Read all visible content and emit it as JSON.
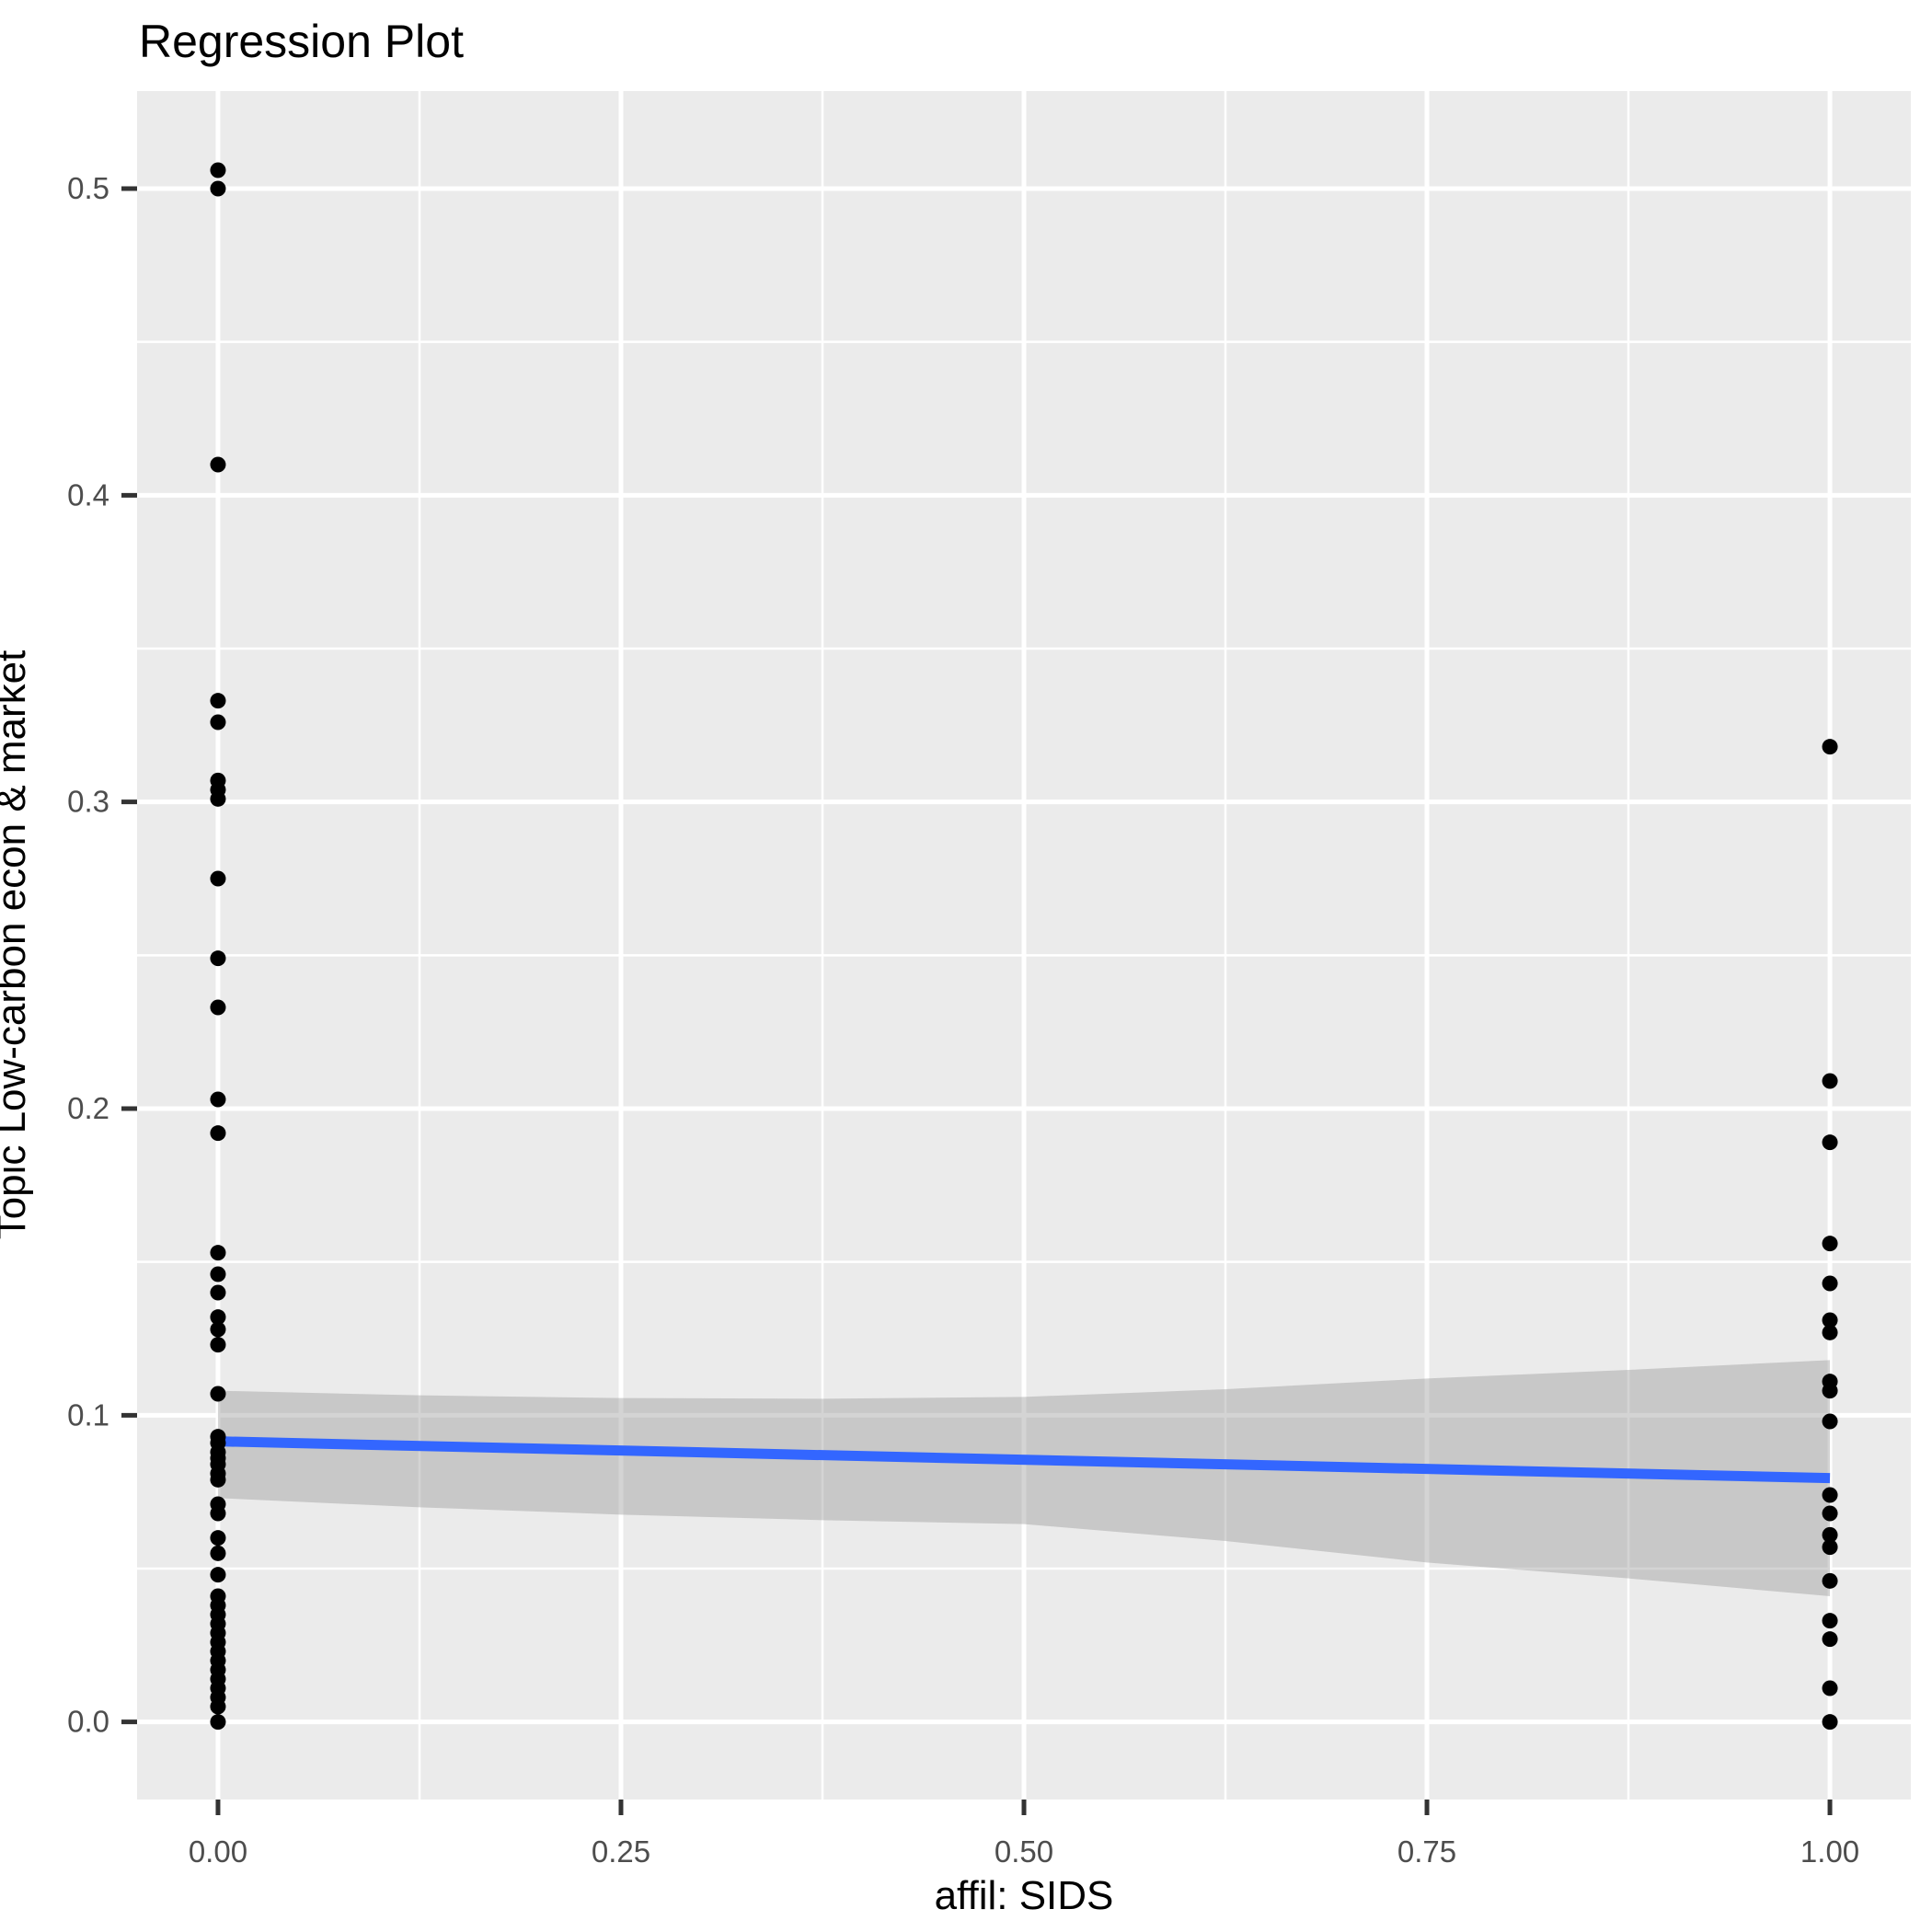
{
  "title": "Regression Plot",
  "chart_data": {
    "type": "scatter",
    "title": "Regression Plot",
    "xlabel": "affil: SIDS",
    "ylabel": "Topic Low-carbon econ & market",
    "xlim": [
      -0.0502,
      1.0502
    ],
    "ylim": [
      -0.0253,
      0.5318
    ],
    "grid": true,
    "legend": false,
    "x_ticks": [
      "0.00",
      "0.25",
      "0.50",
      "0.75",
      "1.00"
    ],
    "x_tick_values": [
      0,
      0.25,
      0.5,
      0.75,
      1
    ],
    "y_ticks": [
      "0.0",
      "0.1",
      "0.2",
      "0.3",
      "0.4",
      "0.5"
    ],
    "y_tick_values": [
      0,
      0.1,
      0.2,
      0.3,
      0.4,
      0.5
    ],
    "x_minor": [
      0.125,
      0.375,
      0.625,
      0.875
    ],
    "y_minor": [
      0.05,
      0.15,
      0.25,
      0.35,
      0.45
    ],
    "series": [
      {
        "name": "x=0",
        "x": 0,
        "values": [
          0.506,
          0.5,
          0.41,
          0.333,
          0.326,
          0.307,
          0.304,
          0.301,
          0.275,
          0.249,
          0.233,
          0.203,
          0.192,
          0.153,
          0.146,
          0.14,
          0.132,
          0.128,
          0.123,
          0.107,
          0.093,
          0.091,
          0.088,
          0.086,
          0.084,
          0.081,
          0.079,
          0.071,
          0.068,
          0.06,
          0.055,
          0.048,
          0.041,
          0.038,
          0.035,
          0.032,
          0.029,
          0.026,
          0.023,
          0.02,
          0.017,
          0.014,
          0.011,
          0.008,
          0.005,
          0.0
        ]
      },
      {
        "name": "x=1",
        "x": 1,
        "values": [
          0.318,
          0.209,
          0.189,
          0.156,
          0.143,
          0.131,
          0.127,
          0.111,
          0.108,
          0.098,
          0.074,
          0.068,
          0.061,
          0.057,
          0.046,
          0.033,
          0.027,
          0.011,
          0.0
        ]
      }
    ],
    "regression_line": {
      "x": [
        0,
        1
      ],
      "y": [
        0.0915,
        0.0795
      ],
      "color": "#3366FF"
    },
    "confidence_band": {
      "x": [
        0,
        0.125,
        0.25,
        0.375,
        0.5,
        0.625,
        0.75,
        0.875,
        1
      ],
      "upper": [
        0.108,
        0.1065,
        0.1056,
        0.1054,
        0.106,
        0.1085,
        0.112,
        0.1148,
        0.118
      ],
      "lower": [
        0.073,
        0.07,
        0.0676,
        0.0658,
        0.0645,
        0.059,
        0.052,
        0.0468,
        0.041
      ]
    },
    "colors": {
      "panel_bg": "#EBEBEB",
      "grid": "#FFFFFF",
      "point": "#000000",
      "band": "#999999",
      "band_opacity": 0.42,
      "line": "#3366FF",
      "tick_mark": "#333333",
      "tick_label": "#4D4D4D",
      "axis_title": "#000000"
    }
  }
}
